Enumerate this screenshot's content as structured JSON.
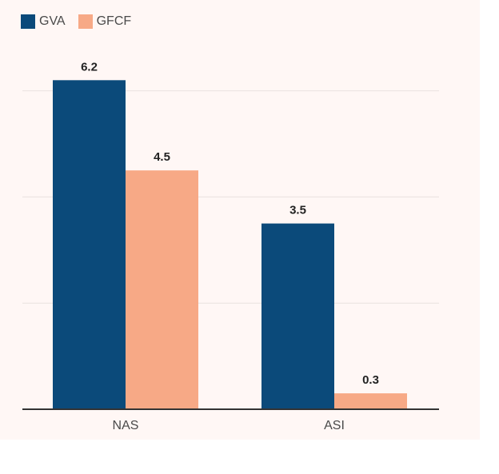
{
  "chart_data": {
    "type": "bar",
    "categories": [
      "NAS",
      "ASI"
    ],
    "series": [
      {
        "name": "GVA",
        "values": [
          6.2,
          3.5
        ],
        "color": "#0b4a7a"
      },
      {
        "name": "GFCF",
        "values": [
          4.5,
          0.3
        ],
        "color": "#f7a986"
      }
    ],
    "value_labels": [
      [
        "6.2",
        "3.5"
      ],
      [
        "4.5",
        "0.3"
      ]
    ],
    "ylim": [
      0,
      6
    ],
    "gridlines": [
      2,
      4,
      6
    ],
    "grid": true,
    "legend_position": "top-left"
  },
  "colors": {
    "background": "#fff7f5",
    "gridline": "#e9e2df",
    "axis": "#333333"
  }
}
